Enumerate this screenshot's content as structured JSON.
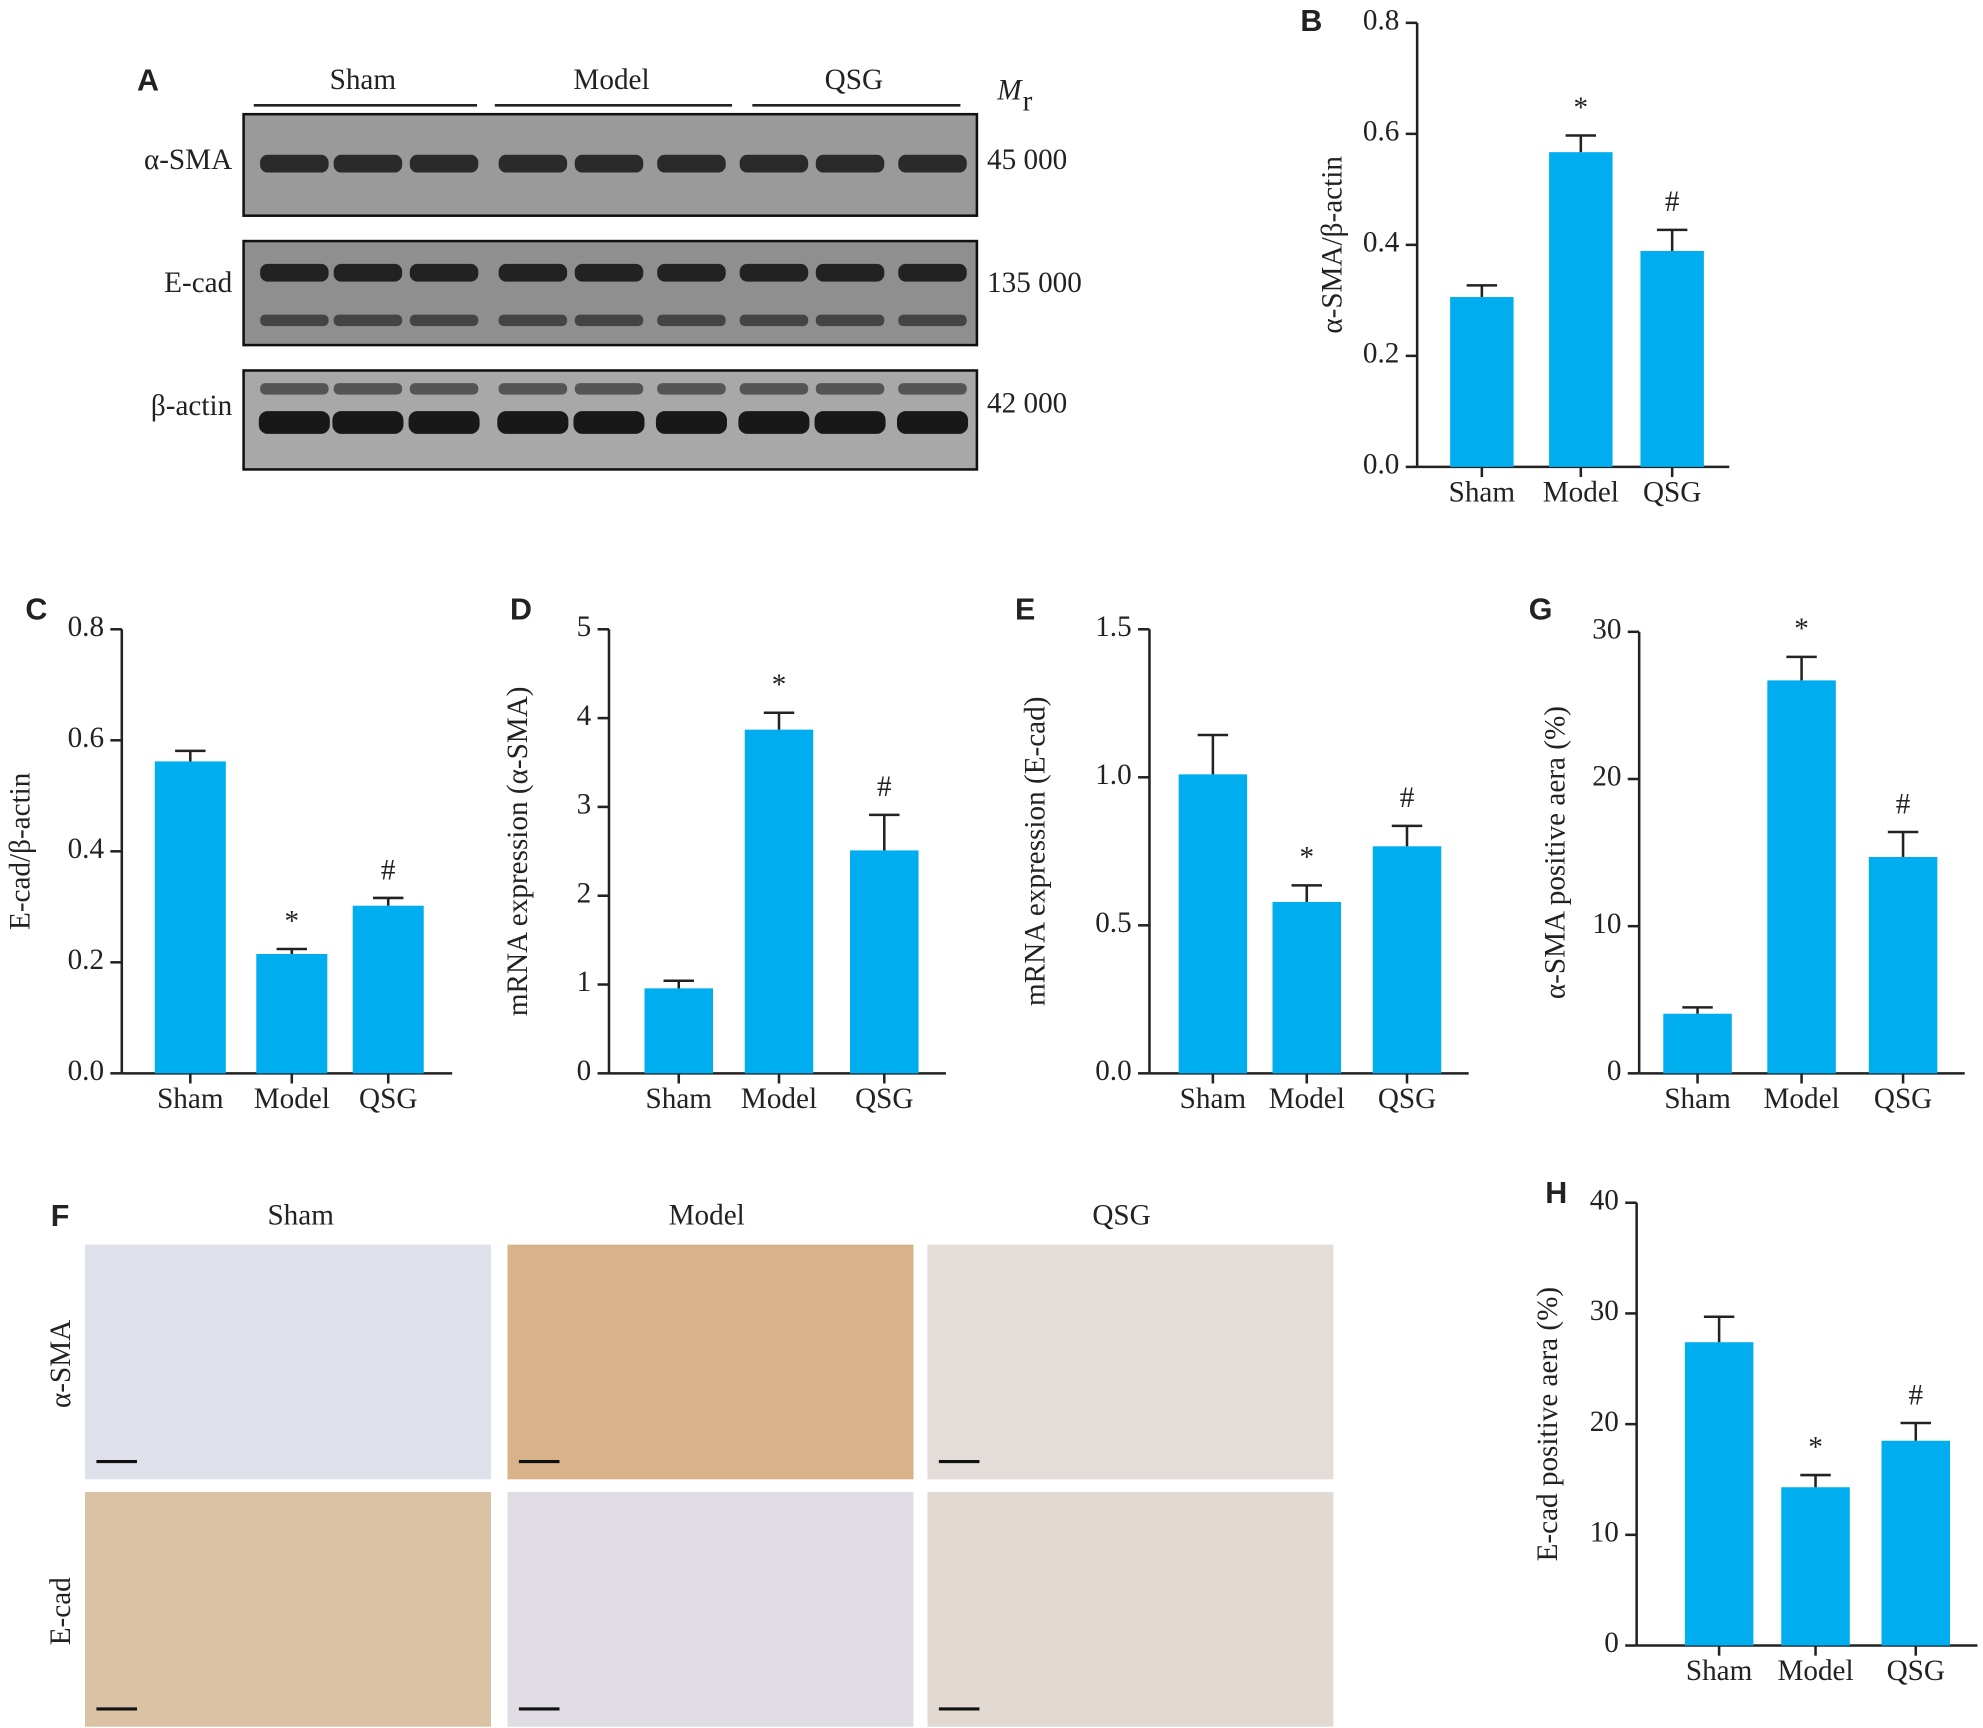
{
  "blot": {
    "panel": "A",
    "groups": [
      "Sham",
      "Model",
      "QSG"
    ],
    "mr": "M",
    "mr_sub": "r",
    "rows": [
      {
        "label": "α-SMA",
        "weight": "45 000"
      },
      {
        "label": "E-cad",
        "weight": "135 000"
      },
      {
        "label": "β-actin",
        "weight": "42 000"
      }
    ]
  },
  "ihc": {
    "panel": "F",
    "groups": [
      "Sham",
      "Model",
      "QSG"
    ],
    "rows": [
      "α-SMA",
      "E-cad"
    ]
  },
  "chart_data": [
    {
      "type": "bar",
      "panel": "B",
      "ylabel": "α-SMA/β-actin",
      "categories": [
        "Sham",
        "Model",
        "QSG"
      ],
      "values": [
        0.306,
        0.567,
        0.389
      ],
      "errors": [
        0.021,
        0.03,
        0.038
      ],
      "annotations": [
        null,
        "*",
        "#"
      ],
      "color": "#00aeef",
      "ylim": [
        0,
        0.8
      ],
      "yticks": [
        {
          "value": 0,
          "label": "0.0"
        },
        0.2,
        0.4,
        0.6,
        0.8
      ]
    },
    {
      "type": "bar",
      "panel": "C",
      "ylabel": "E-cad/β-actin",
      "categories": [
        "Sham",
        "Model",
        "QSG"
      ],
      "values": [
        0.562,
        0.215,
        0.302
      ],
      "errors": [
        0.019,
        0.009,
        0.014
      ],
      "annotations": [
        null,
        "*",
        "#"
      ],
      "color": "#00aeef",
      "ylim": [
        0,
        0.8
      ],
      "yticks": [
        {
          "value": 0,
          "label": "0.0"
        },
        0.2,
        0.4,
        0.6,
        0.8
      ]
    },
    {
      "type": "bar",
      "panel": "D",
      "ylabel": "mRNA expression (α-SMA)",
      "categories": [
        "Sham",
        "Model",
        "QSG"
      ],
      "values": [
        0.957,
        3.87,
        2.51
      ],
      "errors": [
        0.086,
        0.19,
        0.4
      ],
      "annotations": [
        null,
        "*",
        "#"
      ],
      "color": "#00aeef",
      "ylim": [
        0,
        5
      ],
      "yticks": [
        0,
        1,
        2,
        3,
        4,
        5
      ]
    },
    {
      "type": "bar",
      "panel": "E",
      "ylabel": "mRNA expression (E-cad)",
      "categories": [
        "Sham",
        "Model",
        "QSG"
      ],
      "values": [
        1.01,
        0.579,
        0.767
      ],
      "errors": [
        0.133,
        0.056,
        0.069
      ],
      "annotations": [
        null,
        "*",
        "#"
      ],
      "color": "#00aeef",
      "ylim": [
        0,
        1.5
      ],
      "yticks": [
        {
          "value": 0,
          "label": "0.0"
        },
        0.5,
        {
          "value": 1,
          "label": "1.0"
        },
        1.5
      ]
    },
    {
      "type": "bar",
      "panel": "G",
      "ylabel": "α-SMA positive aera (%)",
      "categories": [
        "Sham",
        "Model",
        "QSG"
      ],
      "values": [
        4.05,
        26.7,
        14.7
      ],
      "errors": [
        0.43,
        1.6,
        1.7
      ],
      "annotations": [
        null,
        "*",
        "#"
      ],
      "color": "#00aeef",
      "ylim": [
        0,
        30
      ],
      "yticks": [
        0,
        10,
        20,
        30
      ]
    },
    {
      "type": "bar",
      "panel": "H",
      "ylabel": "E-cad positive aera (%)",
      "categories": [
        "Sham",
        "Model",
        "QSG"
      ],
      "values": [
        27.4,
        14.3,
        18.5
      ],
      "errors": [
        2.3,
        1.1,
        1.6
      ],
      "annotations": [
        null,
        "*",
        "#"
      ],
      "color": "#00aeef",
      "ylim": [
        0,
        40
      ],
      "yticks": [
        0,
        10,
        20,
        30,
        40
      ]
    }
  ]
}
